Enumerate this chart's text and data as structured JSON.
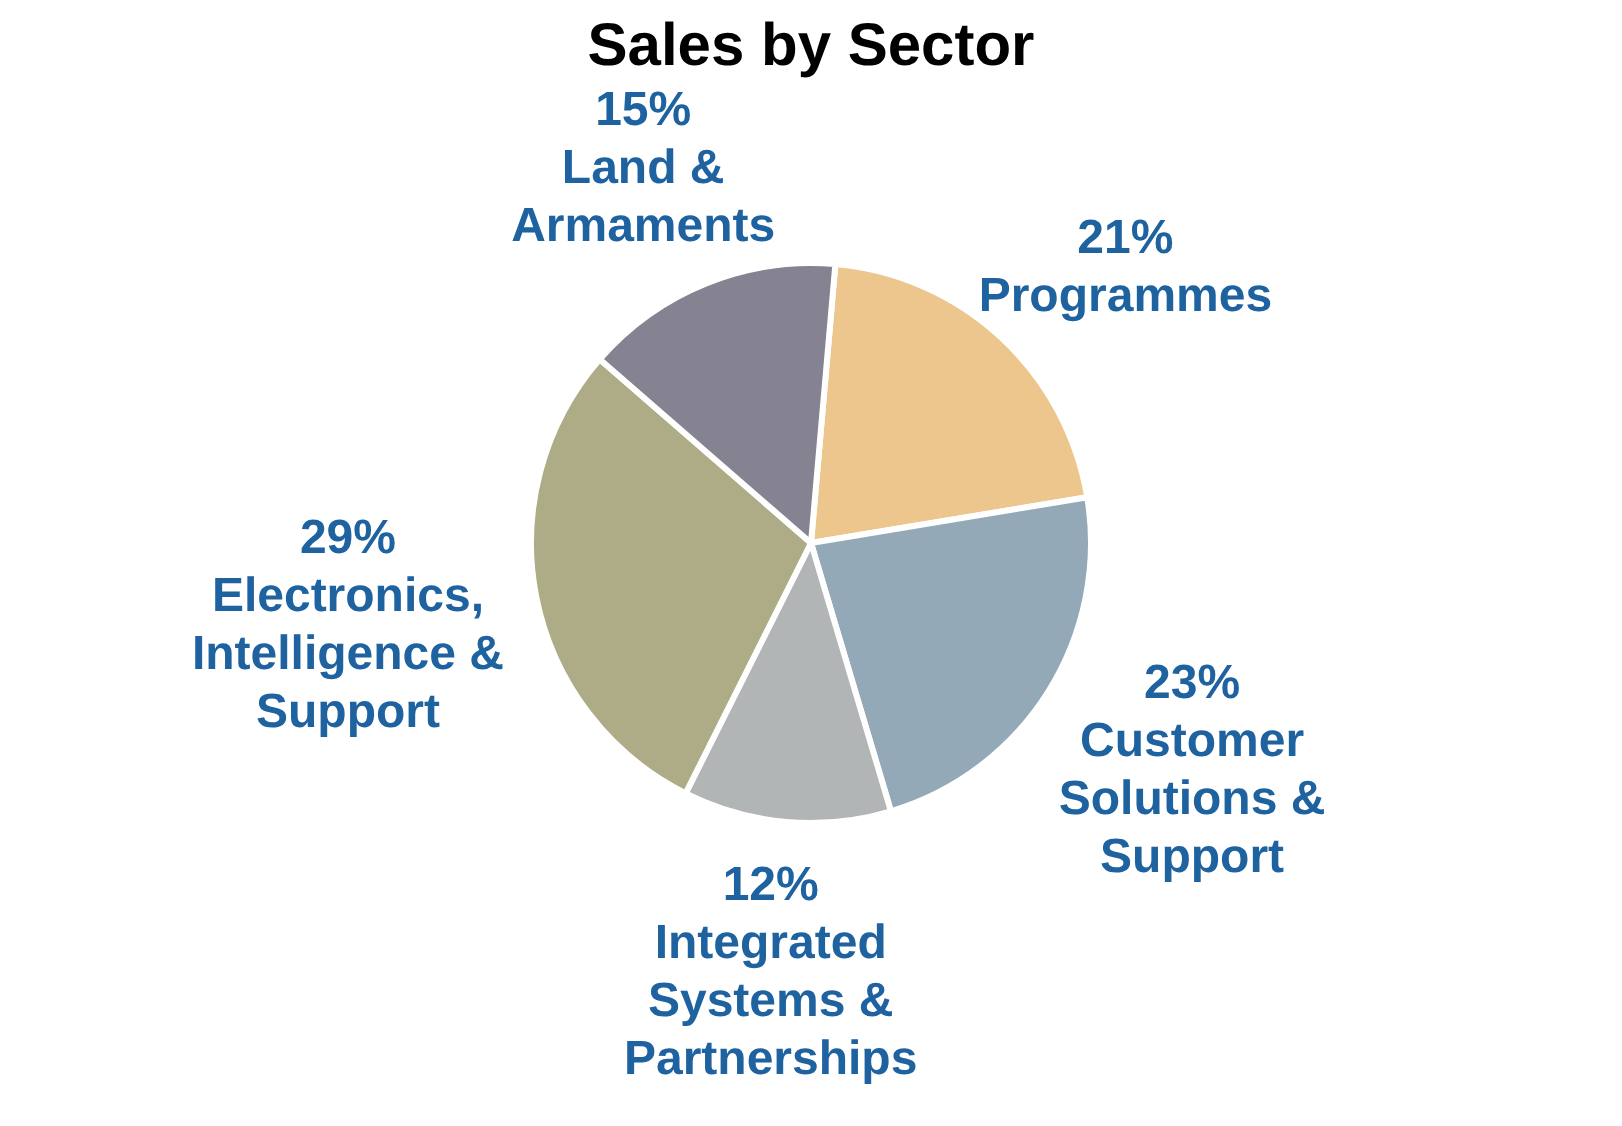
{
  "chart_data": {
    "type": "pie",
    "title": "Sales by Sector",
    "categories": [
      "Programmes",
      "Customer Solutions & Support",
      "Integrated Systems & Partnerships",
      "Electronics, Intelligence & Support",
      "Land & Armaments"
    ],
    "values": [
      21,
      23,
      12,
      29,
      15
    ],
    "colors": [
      "#ecc68c",
      "#93a9b8",
      "#b1b5b5",
      "#aeac86",
      "#858391"
    ],
    "value_labels": [
      "21%",
      "23%",
      "12%",
      "29%",
      "15%"
    ],
    "legend": false
  }
}
